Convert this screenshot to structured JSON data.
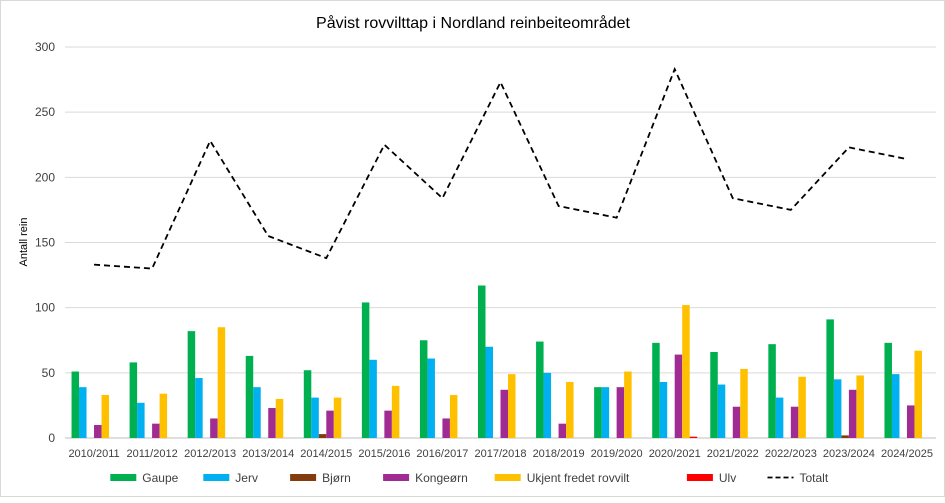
{
  "chart_data": {
    "type": "bar",
    "title": "Påvist rovvilttap i Nordland reinbeiteområdet",
    "xlabel": "",
    "ylabel": "Antall rein",
    "ylim": [
      0,
      300
    ],
    "yticks": [
      0,
      50,
      100,
      150,
      200,
      250,
      300
    ],
    "grid": true,
    "legend_position": "bottom",
    "categories": [
      "2010/2011",
      "2011/2012",
      "2012/2013",
      "2013/2014",
      "2014/2015",
      "2015/2016",
      "2016/2017",
      "2017/2018",
      "2018/2019",
      "2019/2020",
      "2020/2021",
      "2021/2022",
      "2022/2023",
      "2023/2024",
      "2024/2025"
    ],
    "series": [
      {
        "name": "Gaupe",
        "kind": "bar",
        "color": "#00b050",
        "values": [
          51,
          58,
          82,
          63,
          52,
          104,
          75,
          117,
          74,
          39,
          73,
          66,
          72,
          91,
          73
        ]
      },
      {
        "name": "Jerv",
        "kind": "bar",
        "color": "#00b0f0",
        "values": [
          39,
          27,
          46,
          39,
          31,
          60,
          61,
          70,
          50,
          39,
          43,
          41,
          31,
          45,
          49
        ]
      },
      {
        "name": "Bjørn",
        "kind": "bar",
        "color": "#843c0c",
        "values": [
          0,
          0,
          0,
          0,
          3,
          0,
          0,
          0,
          0,
          0,
          0,
          0,
          0,
          2,
          0
        ]
      },
      {
        "name": "Kongeørn",
        "kind": "bar",
        "color": "#a02b93",
        "values": [
          10,
          11,
          15,
          23,
          21,
          21,
          15,
          37,
          11,
          39,
          64,
          24,
          24,
          37,
          25
        ]
      },
      {
        "name": "Ukjent fredet rovvilt",
        "kind": "bar",
        "color": "#ffc000",
        "values": [
          33,
          34,
          85,
          30,
          31,
          40,
          33,
          49,
          43,
          51,
          102,
          53,
          47,
          48,
          67
        ]
      },
      {
        "name": "Ulv",
        "kind": "bar",
        "color": "#ff0000",
        "values": [
          0,
          0,
          0,
          0,
          0,
          0,
          0,
          0,
          0,
          0,
          1,
          0,
          0,
          0,
          0
        ]
      },
      {
        "name": "Totalt",
        "kind": "line",
        "color": "#000000",
        "values": [
          133,
          130,
          228,
          155,
          138,
          225,
          184,
          273,
          178,
          169,
          283,
          184,
          175,
          223,
          214
        ]
      }
    ]
  }
}
